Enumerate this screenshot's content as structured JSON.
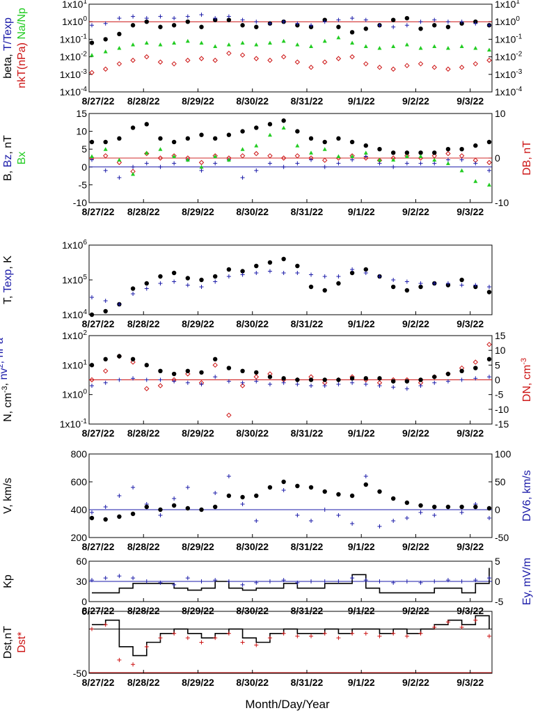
{
  "figure": {
    "xlabel": "Month/Day/Year",
    "dates": [
      "8/27/22",
      "8/28/22",
      "8/29/22",
      "8/30/22",
      "8/31/22",
      "9/1/22",
      "9/2/22",
      "9/3/22"
    ],
    "colors": {
      "black": "#000000",
      "blue": "#1a1aa8",
      "red": "#cc1111",
      "green": "#22cc22"
    }
  },
  "chart_data": [
    {
      "type": "scatter",
      "panel": "plasma-beta",
      "ylabel_parts": [
        {
          "text": "beta, ",
          "color": "black"
        },
        {
          "text": "T/Texp",
          "color": "blue"
        }
      ],
      "ylabel2_parts": [
        {
          "text": "nkT(nPa)",
          "color": "red"
        },
        {
          "text": "Na/Np",
          "color": "green"
        }
      ],
      "log": true,
      "ylim_exp": [
        -4,
        1
      ],
      "yticks": [
        {
          "m": "1x10",
          "e": "1"
        },
        {
          "m": "1x10",
          "e": "0"
        },
        {
          "m": "1x10",
          "e": "-1"
        },
        {
          "m": "1x10",
          "e": "-2"
        },
        {
          "m": "1x10",
          "e": "-3"
        },
        {
          "m": "1x10",
          "e": "-4"
        }
      ],
      "refline": {
        "value_exp": 0,
        "color": "red"
      },
      "series": [
        {
          "color": "black",
          "marker": "dot",
          "values": [
            -1.2,
            -1.0,
            -0.7,
            -0.2,
            0.0,
            -0.3,
            -0.2,
            0.0,
            -0.3,
            0.1,
            0.1,
            -0.2,
            -0.3,
            -0.1,
            0.0,
            -0.2,
            -0.3,
            0.1,
            -0.3,
            -0.6,
            -0.4,
            -0.2,
            0.1,
            0.2,
            -0.4,
            -0.2,
            -0.3,
            -0.1,
            0.0,
            -0.2
          ]
        },
        {
          "color": "blue",
          "marker": "plus",
          "values": [
            -0.2,
            -0.1,
            0.2,
            0.3,
            0.2,
            0.3,
            0.2,
            0.3,
            0.4,
            0.2,
            0.3,
            0.1,
            0.0,
            -0.1,
            0.0,
            -0.1,
            -0.2,
            0.0,
            0.1,
            0.2,
            0.1,
            -0.2,
            -0.3,
            -0.2,
            0.0,
            0.1,
            0.0,
            0.0,
            -0.1,
            -0.2
          ]
        },
        {
          "color": "green",
          "marker": "triangle",
          "values": [
            -1.9,
            -1.7,
            -1.5,
            -1.3,
            -1.2,
            -1.3,
            -1.2,
            -1.1,
            -1.2,
            -1.4,
            -1.3,
            -1.2,
            -1.3,
            -1.2,
            -1.1,
            -1.3,
            -1.4,
            -1.1,
            -0.9,
            -1.2,
            -1.4,
            -1.5,
            -1.4,
            -1.3,
            -1.5,
            -1.4,
            -1.5,
            -1.4,
            -1.5,
            -1.6
          ]
        },
        {
          "color": "red",
          "marker": "diamond",
          "values": [
            -2.9,
            -2.7,
            -2.4,
            -2.2,
            -2.0,
            -2.3,
            -2.4,
            -2.2,
            -2.1,
            -2.2,
            -1.8,
            -1.9,
            -2.1,
            -2.2,
            -2.0,
            -2.3,
            -2.6,
            -2.3,
            -2.1,
            -2.0,
            -2.4,
            -2.6,
            -2.7,
            -2.5,
            -2.4,
            -2.6,
            -2.7,
            -2.6,
            -2.4,
            -2.2
          ]
        }
      ],
      "right_axis": {
        "log": true,
        "ylim_exp": [
          -4,
          1
        ],
        "yticks": [
          {
            "m": "1x10",
            "e": "1"
          },
          {
            "m": "1x10",
            "e": "0"
          },
          {
            "m": "1x10",
            "e": "-1"
          },
          {
            "m": "1x10",
            "e": "-2"
          },
          {
            "m": "1x10",
            "e": "-3"
          },
          {
            "m": "1x10",
            "e": "-4"
          }
        ]
      }
    },
    {
      "type": "scatter",
      "panel": "magnetic-field",
      "ylabel_parts": [
        {
          "text": "B, ",
          "color": "black"
        },
        {
          "text": "Bz",
          "color": "blue"
        },
        {
          "text": ", nT",
          "color": "black"
        }
      ],
      "ylabel2_parts": [
        {
          "text": "Bx",
          "color": "green"
        }
      ],
      "ylim": [
        -10,
        15
      ],
      "yticks": [
        "15",
        "10",
        "5",
        "0",
        "-5",
        "-10"
      ],
      "refline": {
        "value": 0,
        "color": "blue"
      },
      "refline2": {
        "value": 0,
        "color": "red",
        "axis": "right"
      },
      "series": [
        {
          "color": "black",
          "marker": "dot",
          "values": [
            7,
            7,
            8,
            11,
            12,
            8,
            7,
            8,
            9,
            8,
            9,
            10,
            11,
            12,
            13,
            10,
            8,
            7,
            8,
            7,
            6,
            5,
            4,
            4,
            4,
            4,
            5,
            5,
            6,
            7
          ]
        },
        {
          "color": "blue",
          "marker": "plus",
          "values": [
            2,
            -1,
            -3,
            0,
            1,
            0,
            1,
            2,
            -1,
            1,
            2,
            -3,
            -1,
            1,
            0,
            1,
            2,
            0,
            1,
            2,
            3,
            1,
            0,
            1,
            1,
            1,
            2,
            2,
            1,
            -1
          ]
        },
        {
          "color": "green",
          "marker": "triangle",
          "values": [
            3,
            5,
            2,
            -2,
            4,
            5,
            3,
            2,
            0,
            3,
            2,
            5,
            6,
            9,
            11,
            6,
            4,
            5,
            3,
            3,
            4,
            2,
            2,
            3,
            3,
            2,
            1,
            -1,
            -4,
            -5
          ]
        }
      ],
      "right_axis": {
        "ylabel": "DB, nT",
        "color": "red",
        "ylim": [
          -10,
          10
        ],
        "yticks": [
          "10",
          "0",
          "-10"
        ],
        "series": [
          {
            "color": "red",
            "marker": "diamond",
            "values": [
              0,
              0.5,
              -1,
              -3,
              1,
              0,
              0.5,
              0,
              -1,
              0.5,
              0,
              0.5,
              1,
              0.5,
              0,
              0.5,
              0,
              -0.5,
              0,
              0.5,
              0,
              -0.5,
              0,
              0.5,
              0,
              0.5,
              1,
              0.5,
              -0.5,
              -1
            ]
          }
        ]
      }
    },
    {
      "type": "scatter",
      "panel": "temperature",
      "ylabel_parts": [
        {
          "text": "T, ",
          "color": "black"
        },
        {
          "text": "Texp",
          "color": "blue"
        },
        {
          "text": ", K",
          "color": "black"
        }
      ],
      "log": true,
      "ylim_exp": [
        4,
        6
      ],
      "yticks": [
        {
          "m": "1x10",
          "e": "6"
        },
        {
          "m": "1x10",
          "e": "5"
        },
        {
          "m": "1x10",
          "e": "4"
        }
      ],
      "series": [
        {
          "color": "black",
          "marker": "dot",
          "values": [
            4.0,
            4.1,
            4.3,
            4.75,
            4.9,
            5.1,
            5.2,
            5.05,
            5.0,
            5.1,
            5.3,
            5.25,
            5.4,
            5.5,
            5.6,
            5.4,
            4.8,
            4.7,
            4.9,
            5.2,
            5.3,
            5.1,
            4.8,
            4.7,
            4.8,
            4.9,
            4.85,
            5.0,
            4.8,
            4.65
          ]
        },
        {
          "color": "blue",
          "marker": "plus",
          "values": [
            4.5,
            4.4,
            4.3,
            4.6,
            4.75,
            4.9,
            4.95,
            4.85,
            4.8,
            4.95,
            5.1,
            5.15,
            5.2,
            5.25,
            5.2,
            5.2,
            5.15,
            5.1,
            5.1,
            5.3,
            5.2,
            5.1,
            5.0,
            4.95,
            4.9,
            4.9,
            4.9,
            4.85,
            4.85,
            4.8
          ]
        }
      ]
    },
    {
      "type": "scatter",
      "panel": "density",
      "ylabel_parts": [
        {
          "text": "N, cm",
          "color": "black",
          "sup": "-3"
        },
        {
          "text": ", ",
          "color": "black"
        },
        {
          "text": "nv",
          "color": "blue",
          "sup": "2"
        },
        {
          "text": ", nPa",
          "color": "blue"
        }
      ],
      "log": true,
      "ylim_exp": [
        -1,
        2
      ],
      "yticks": [
        {
          "m": "1x10",
          "e": "2"
        },
        {
          "m": "1x10",
          "e": "1"
        },
        {
          "m": "1x10",
          "e": "0"
        },
        {
          "m": "1x10",
          "e": "-1"
        }
      ],
      "series": [
        {
          "color": "black",
          "marker": "dot",
          "values": [
            1.0,
            1.2,
            1.3,
            1.2,
            1.0,
            0.8,
            0.7,
            0.8,
            0.75,
            1.2,
            0.9,
            0.8,
            0.75,
            0.6,
            0.55,
            0.5,
            0.5,
            0.5,
            0.5,
            0.55,
            0.55,
            0.55,
            0.45,
            0.45,
            0.5,
            0.6,
            0.7,
            0.8,
            0.9,
            1.2
          ]
        },
        {
          "color": "blue",
          "marker": "plus",
          "values": [
            0.3,
            0.4,
            0.5,
            0.55,
            0.5,
            0.5,
            0.45,
            0.4,
            0.35,
            0.6,
            0.45,
            0.4,
            0.45,
            0.35,
            0.4,
            0.35,
            0.3,
            0.3,
            0.35,
            0.4,
            0.35,
            0.3,
            0.25,
            0.2,
            0.3,
            0.4,
            0.45,
            0.5,
            0.55,
            0.6
          ]
        }
      ],
      "right_axis": {
        "ylabel": "DN, cm",
        "ylabel_sup": "-3",
        "color": "red",
        "ylim": [
          -15,
          15
        ],
        "yticks": [
          "15",
          "10",
          "5",
          "0",
          "-5",
          "-10",
          "-15"
        ],
        "refline": {
          "value": 0,
          "color": "red"
        },
        "series": [
          {
            "color": "red",
            "marker": "diamond",
            "values": [
              0,
              3,
              8,
              6,
              -3,
              -2,
              0,
              2,
              -1,
              5,
              -12,
              -2,
              1,
              2,
              0,
              0,
              1,
              -1,
              0,
              1,
              0,
              -1,
              0,
              0,
              -1,
              1,
              2,
              4,
              6,
              12
            ]
          }
        ]
      }
    },
    {
      "type": "scatter",
      "panel": "speed",
      "ylabel": "V, km/s",
      "ylim": [
        200,
        800
      ],
      "yticks": [
        "800",
        "600",
        "400",
        "200"
      ],
      "series": [
        {
          "color": "black",
          "marker": "dot",
          "values": [
            340,
            330,
            350,
            370,
            420,
            400,
            430,
            410,
            400,
            420,
            500,
            490,
            500,
            560,
            600,
            570,
            560,
            530,
            510,
            500,
            580,
            530,
            480,
            450,
            430,
            420,
            420,
            420,
            420,
            410
          ]
        }
      ],
      "right_axis": {
        "ylabel": "DV6, km/s",
        "color": "blue",
        "ylim": [
          -50,
          100
        ],
        "yticks": [
          "100",
          "50",
          "0",
          "-50"
        ],
        "refline": {
          "value": 0,
          "color": "blue"
        },
        "series": [
          {
            "color": "blue",
            "marker": "plus",
            "values": [
              -5,
              5,
              25,
              40,
              10,
              -10,
              20,
              40,
              0,
              30,
              60,
              10,
              -20,
              40,
              35,
              -10,
              -20,
              0,
              -10,
              -25,
              60,
              -30,
              -20,
              -15,
              -5,
              -10,
              5,
              -5,
              10,
              -15
            ]
          }
        ]
      }
    },
    {
      "type": "line",
      "panel": "kp-ey",
      "ylabel": "Kp",
      "ylim": [
        0,
        60
      ],
      "yticks": [
        "60",
        "30",
        "0"
      ],
      "series": [
        {
          "color": "black",
          "marker": "line",
          "values": [
            13,
            13,
            20,
            27,
            27,
            27,
            20,
            17,
            20,
            30,
            20,
            17,
            20,
            20,
            27,
            20,
            20,
            27,
            27,
            40,
            20,
            13,
            13,
            13,
            13,
            20,
            20,
            13,
            27,
            50
          ]
        },
        {
          "color": "blue",
          "marker": "plus",
          "values": [
            32,
            35,
            38,
            35,
            30,
            28,
            25,
            35,
            30,
            32,
            30,
            25,
            28,
            30,
            32,
            28,
            30,
            30,
            30,
            35,
            32,
            30,
            28,
            30,
            28,
            30,
            32,
            30,
            32,
            35
          ]
        }
      ],
      "right_axis": {
        "ylabel": "Ey,  mV/m",
        "color": "blue",
        "ylim": [
          -5,
          5
        ],
        "yticks": [
          "5",
          "0",
          "-5"
        ],
        "refline": {
          "value": 0,
          "color": "blue"
        }
      }
    },
    {
      "type": "line",
      "panel": "dst",
      "ylabel_parts": [
        {
          "text": "Dst,nT",
          "color": "black"
        }
      ],
      "ylabel2_parts": [
        {
          "text": "Dst*",
          "color": "red"
        }
      ],
      "ylim": [
        -50,
        20
      ],
      "yticks": [
        "0",
        "-50"
      ],
      "refline": {
        "value": 0,
        "color": "black"
      },
      "refline2": {
        "value": -50,
        "color": "red"
      },
      "series": [
        {
          "color": "black",
          "marker": "line",
          "values": [
            5,
            10,
            -20,
            -30,
            -15,
            -5,
            0,
            -5,
            -10,
            -5,
            0,
            -10,
            -15,
            -5,
            0,
            -5,
            -5,
            0,
            -5,
            0,
            0,
            -5,
            0,
            -5,
            0,
            5,
            10,
            5,
            15,
            0
          ]
        },
        {
          "color": "red",
          "marker": "plus",
          "values": [
            0,
            5,
            -35,
            -40,
            -20,
            -10,
            -5,
            -10,
            -15,
            -10,
            -5,
            -15,
            -18,
            -10,
            -5,
            -8,
            -8,
            -5,
            -10,
            -5,
            -5,
            -8,
            -5,
            -8,
            -5,
            2,
            8,
            2,
            10,
            -8
          ]
        }
      ]
    }
  ]
}
